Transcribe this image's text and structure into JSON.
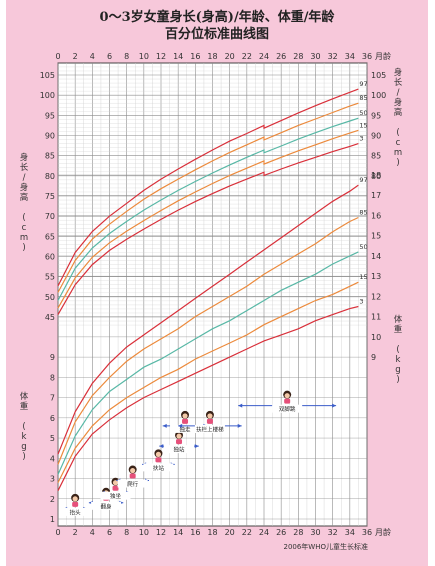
{
  "title": {
    "line1": "0～3岁女童身长(身高)/年龄、体重/年龄",
    "line2": "百分位标准曲线图"
  },
  "source": "2006年WHO儿童生长标准",
  "colors": {
    "background": "#f7c8da",
    "frame": "#444444",
    "grid_major": "#8c8c8c",
    "grid_minor": "#cfcfcf",
    "p3": "#d9303a",
    "p15": "#ec8a3c",
    "p50": "#58b8a6",
    "p85": "#ec8a3c",
    "p97": "#d9303a",
    "milestone_arrow": "#3b5dc9"
  },
  "chart_data": [
    {
      "type": "line",
      "name": "length_for_age",
      "xlabel": "月龄",
      "ylabel_left": "身长/身高 (cm)",
      "ylabel_right": "身长/身高 (cm)",
      "xlim": [
        0,
        36
      ],
      "ylim": [
        43,
        107
      ],
      "x_ticks": [
        0,
        2,
        4,
        6,
        8,
        10,
        12,
        14,
        16,
        18,
        20,
        22,
        24,
        26,
        28,
        30,
        32,
        34,
        36
      ],
      "y_ticks_left": [
        45,
        50,
        55,
        60,
        65,
        70,
        75,
        80,
        85,
        90,
        95,
        100,
        105
      ],
      "y_ticks_right": [
        80,
        85,
        90,
        95,
        100,
        105
      ],
      "x": [
        0,
        2,
        4,
        6,
        8,
        10,
        12,
        14,
        16,
        18,
        20,
        22,
        24,
        24,
        26,
        28,
        30,
        32,
        34,
        35
      ],
      "series": [
        {
          "name": "3",
          "values": [
            45.6,
            53.0,
            58.0,
            61.5,
            64.3,
            66.8,
            69.2,
            71.5,
            73.6,
            75.6,
            77.5,
            79.2,
            80.9,
            80.1,
            81.7,
            83.2,
            84.6,
            86.0,
            87.3,
            88.0
          ]
        },
        {
          "name": "15",
          "values": [
            47.2,
            54.7,
            59.8,
            63.4,
            66.3,
            68.9,
            71.4,
            73.8,
            76.0,
            78.1,
            80.1,
            81.9,
            83.7,
            82.9,
            84.6,
            86.2,
            87.7,
            89.2,
            90.6,
            91.3
          ]
        },
        {
          "name": "50",
          "values": [
            49.1,
            57.1,
            62.1,
            65.7,
            68.7,
            71.5,
            74.0,
            76.4,
            78.6,
            80.7,
            82.7,
            84.6,
            86.4,
            85.7,
            87.4,
            89.1,
            90.7,
            92.2,
            93.6,
            94.3
          ]
        },
        {
          "name": "85",
          "values": [
            51.1,
            59.0,
            64.3,
            68.0,
            71.2,
            74.2,
            76.8,
            79.2,
            81.5,
            83.7,
            85.8,
            87.7,
            89.6,
            88.9,
            90.7,
            92.5,
            94.1,
            95.7,
            97.3,
            98.0
          ]
        },
        {
          "name": "97",
          "values": [
            52.7,
            61.0,
            66.2,
            70.0,
            73.2,
            76.4,
            79.2,
            81.7,
            84.1,
            86.4,
            88.6,
            90.5,
            92.5,
            91.8,
            93.7,
            95.6,
            97.4,
            99.1,
            100.7,
            101.5
          ]
        }
      ]
    },
    {
      "type": "line",
      "name": "weight_for_age",
      "xlabel": "月龄",
      "ylabel_left": "体重 (kg)",
      "ylabel_right": "体重 (kg)",
      "xlim": [
        0,
        36
      ],
      "ylim": [
        1,
        19
      ],
      "x_ticks": [
        0,
        2,
        4,
        6,
        8,
        10,
        12,
        14,
        16,
        18,
        20,
        22,
        24,
        26,
        28,
        30,
        32,
        34,
        36
      ],
      "y_ticks_left": [
        1,
        2,
        3,
        4,
        5,
        6,
        7,
        8,
        9
      ],
      "y_ticks_right": [
        9,
        10,
        11,
        12,
        13,
        14,
        15,
        16,
        17,
        18
      ],
      "x": [
        0,
        2,
        4,
        6,
        8,
        10,
        12,
        14,
        16,
        18,
        20,
        22,
        24,
        26,
        28,
        30,
        32,
        34,
        35
      ],
      "series": [
        {
          "name": "3",
          "values": [
            2.4,
            4.1,
            5.2,
            5.9,
            6.5,
            7.0,
            7.4,
            7.8,
            8.2,
            8.6,
            9.0,
            9.4,
            9.8,
            10.1,
            10.4,
            10.8,
            11.1,
            11.4,
            11.5
          ]
        },
        {
          "name": "15",
          "values": [
            2.8,
            4.5,
            5.6,
            6.4,
            7.0,
            7.5,
            8.0,
            8.4,
            8.9,
            9.3,
            9.7,
            10.1,
            10.6,
            11.0,
            11.4,
            11.8,
            12.1,
            12.5,
            12.7
          ]
        },
        {
          "name": "50",
          "values": [
            3.2,
            5.1,
            6.4,
            7.3,
            7.9,
            8.5,
            8.9,
            9.4,
            9.9,
            10.4,
            10.8,
            11.3,
            11.8,
            12.3,
            12.7,
            13.1,
            13.6,
            14.0,
            14.2
          ]
        },
        {
          "name": "85",
          "values": [
            3.7,
            5.8,
            7.1,
            8.0,
            8.8,
            9.4,
            9.9,
            10.4,
            11.0,
            11.5,
            12.0,
            12.5,
            13.1,
            13.6,
            14.1,
            14.6,
            15.2,
            15.7,
            15.9
          ]
        },
        {
          "name": "97",
          "values": [
            4.2,
            6.3,
            7.7,
            8.7,
            9.5,
            10.1,
            10.7,
            11.3,
            11.9,
            12.5,
            13.1,
            13.7,
            14.3,
            14.9,
            15.5,
            16.1,
            16.7,
            17.2,
            17.5
          ]
        }
      ]
    }
  ],
  "milestones": [
    {
      "label": "抬头",
      "start": 0.6,
      "end": 3.4,
      "y": 1.5
    },
    {
      "label": "翻身",
      "start": 3.6,
      "end": 7.6,
      "y": 1.8
    },
    {
      "label": "独坐",
      "start": 5.0,
      "end": 8.4,
      "y": 2.3
    },
    {
      "label": "爬行",
      "start": 6.8,
      "end": 10.6,
      "y": 2.9
    },
    {
      "label": "扶站",
      "start": 9.8,
      "end": 13.6,
      "y": 3.7
    },
    {
      "label": "独站",
      "start": 11.8,
      "end": 16.4,
      "y": 4.6
    },
    {
      "label": "独走",
      "start": 12.2,
      "end": 17.4,
      "y": 5.6
    },
    {
      "label": "扶栏上楼梯",
      "start": 14.0,
      "end": 21.4,
      "y": 5.6
    },
    {
      "label": "双脚跳",
      "start": 21.0,
      "end": 32.4,
      "y": 6.6
    }
  ]
}
